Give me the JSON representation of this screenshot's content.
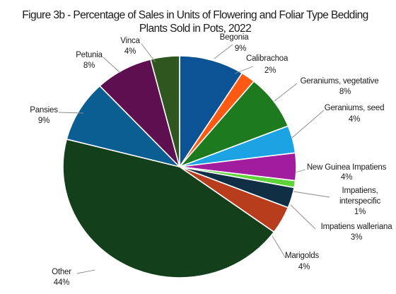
{
  "chart_data": {
    "type": "pie",
    "title": "Figure 3b - Percentage of Sales in Units of Flowering and Foliar Type Bedding",
    "subtitle": "Plants Sold in Pots, 2022",
    "slices": [
      {
        "name": "Begonia",
        "value": 9,
        "value_label": "9%",
        "color": "#0b5394"
      },
      {
        "name": "Calibrachoa",
        "value": 2,
        "value_label": "2%",
        "color": "#ff5a14"
      },
      {
        "name": "Geraniums, vegetative",
        "value": 8,
        "value_label": "8%",
        "color": "#1e7a1e"
      },
      {
        "name": "Geraniums, seed",
        "value": 4,
        "value_label": "4%",
        "color": "#1ba3e3"
      },
      {
        "name": "New Guinea Impatiens",
        "value": 4,
        "value_label": "4%",
        "color": "#a21c9e"
      },
      {
        "name": "Impatiens, interspecific",
        "value": 1,
        "value_label": "1%",
        "color": "#5fd33a"
      },
      {
        "name": "Impatiens walleriana",
        "value": 3,
        "value_label": "3%",
        "color": "#102f45"
      },
      {
        "name": "Marigolds",
        "value": 4,
        "value_label": "4%",
        "color": "#b83d1d"
      },
      {
        "name": "Other",
        "value": 44,
        "value_label": "44%",
        "color": "#13401b"
      },
      {
        "name": "Pansies",
        "value": 9,
        "value_label": "9%",
        "color": "#0b5e91"
      },
      {
        "name": "Petunia",
        "value": 8,
        "value_label": "8%",
        "color": "#5d0f4f"
      },
      {
        "name": "Vinca",
        "value": 4,
        "value_label": "4%",
        "color": "#30561f"
      }
    ]
  }
}
